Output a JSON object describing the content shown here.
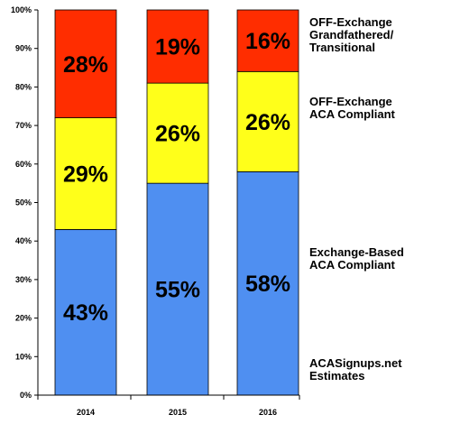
{
  "chart_data": {
    "type": "bar",
    "stacked": true,
    "categories": [
      "2014",
      "2015",
      "2016"
    ],
    "series": [
      {
        "name": "Exchange-Based ACA Compliant",
        "values": [
          43,
          55,
          58
        ],
        "labels": [
          "43%",
          "55%",
          "58%"
        ],
        "color": "#4f8ff1"
      },
      {
        "name": "OFF-Exchange ACA Compliant",
        "values": [
          29,
          26,
          26
        ],
        "labels": [
          "29%",
          "26%",
          "26%"
        ],
        "color": "#ffff1a"
      },
      {
        "name": "OFF-Exchange Grandfathered/Transitional",
        "values": [
          28,
          19,
          16
        ],
        "labels": [
          "28%",
          "19%",
          "16%"
        ],
        "color": "#ff2d00"
      }
    ],
    "ylim": [
      0,
      100
    ],
    "yticks": [
      "0%",
      "10%",
      "20%",
      "30%",
      "40%",
      "50%",
      "60%",
      "70%",
      "80%",
      "90%",
      "100%"
    ],
    "grid": false,
    "legend_placement": "right"
  },
  "legend": {
    "grandfathered": {
      "line1": "OFF-Exchange",
      "line2": "Grandfathered/",
      "line3": "Transitional"
    },
    "offexchange": {
      "line1": "OFF-Exchange",
      "line2": "ACA Compliant"
    },
    "exchange": {
      "line1": "Exchange-Based",
      "line2": "ACA Compliant"
    }
  },
  "watermark": {
    "line1": "ACASignups.net",
    "line2": "Estimates"
  }
}
